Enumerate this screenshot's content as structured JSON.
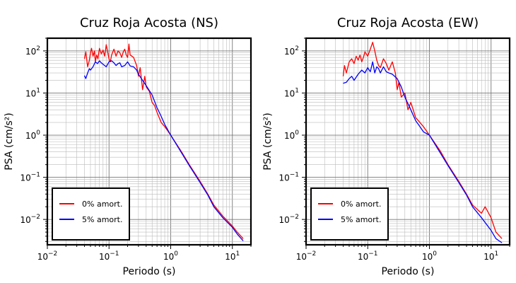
{
  "chart_data": [
    {
      "type": "line",
      "title": "Cruz Roja Acosta (NS)",
      "xlabel": "Periodo (s)",
      "ylabel": "PSA (cm/s²)",
      "xscale": "log",
      "yscale": "log",
      "xlim": [
        0.01,
        20
      ],
      "ylim": [
        0.0025,
        200
      ],
      "grid": true,
      "legend_position": "bottom-left",
      "x_ticks": [
        {
          "base": "10",
          "exp": "−2"
        },
        {
          "base": "10",
          "exp": "−1"
        },
        {
          "base": "10",
          "exp": "0"
        },
        {
          "base": "10",
          "exp": "1"
        }
      ],
      "y_ticks": [
        {
          "base": "10",
          "exp": "−2"
        },
        {
          "base": "10",
          "exp": "−1"
        },
        {
          "base": "10",
          "exp": "0"
        },
        {
          "base": "10",
          "exp": "1"
        },
        {
          "base": "10",
          "exp": "2"
        }
      ],
      "series": [
        {
          "name": "0% amort.",
          "color": "#ff0000",
          "x": [
            0.04,
            0.042,
            0.045,
            0.048,
            0.05,
            0.052,
            0.055,
            0.058,
            0.06,
            0.063,
            0.066,
            0.07,
            0.075,
            0.08,
            0.085,
            0.09,
            0.095,
            0.1,
            0.105,
            0.11,
            0.12,
            0.13,
            0.14,
            0.15,
            0.16,
            0.17,
            0.18,
            0.19,
            0.2,
            0.21,
            0.22,
            0.25,
            0.28,
            0.3,
            0.32,
            0.35,
            0.38,
            0.4,
            0.45,
            0.5,
            0.55,
            0.6,
            0.7,
            0.8,
            1,
            1.5,
            2,
            3,
            4,
            5,
            7,
            10,
            12,
            15
          ],
          "y": [
            65,
            95,
            42,
            60,
            90,
            115,
            75,
            100,
            55,
            80,
            65,
            115,
            85,
            105,
            75,
            140,
            95,
            65,
            55,
            80,
            110,
            75,
            100,
            90,
            70,
            95,
            110,
            80,
            70,
            145,
            80,
            70,
            45,
            25,
            40,
            12,
            25,
            14,
            11,
            6,
            5,
            3.5,
            2,
            1.6,
            1,
            0.4,
            0.2,
            0.08,
            0.04,
            0.022,
            0.012,
            0.007,
            0.005,
            0.0035
          ]
        },
        {
          "name": "5% amort.",
          "color": "#0000ff",
          "x": [
            0.04,
            0.042,
            0.045,
            0.048,
            0.05,
            0.055,
            0.06,
            0.065,
            0.07,
            0.075,
            0.08,
            0.09,
            0.1,
            0.11,
            0.12,
            0.13,
            0.14,
            0.15,
            0.16,
            0.18,
            0.2,
            0.22,
            0.25,
            0.28,
            0.3,
            0.35,
            0.4,
            0.5,
            0.6,
            0.7,
            0.8,
            1,
            1.5,
            2,
            3,
            4,
            5,
            7,
            10,
            12,
            15
          ],
          "y": [
            26,
            22,
            30,
            38,
            35,
            42,
            55,
            50,
            58,
            52,
            48,
            42,
            55,
            58,
            52,
            45,
            50,
            52,
            42,
            45,
            55,
            44,
            42,
            35,
            28,
            20,
            15,
            9,
            4.5,
            2.8,
            1.8,
            1,
            0.38,
            0.19,
            0.075,
            0.038,
            0.02,
            0.011,
            0.0065,
            0.0045,
            0.0031
          ]
        }
      ]
    },
    {
      "type": "line",
      "title": "Cruz Roja Acosta (EW)",
      "xlabel": "Periodo (s)",
      "ylabel": "PSA (cm/s²)",
      "xscale": "log",
      "yscale": "log",
      "xlim": [
        0.01,
        20
      ],
      "ylim": [
        0.0025,
        200
      ],
      "grid": true,
      "legend_position": "bottom-left",
      "x_ticks": [
        {
          "base": "10",
          "exp": "−2"
        },
        {
          "base": "10",
          "exp": "−1"
        },
        {
          "base": "10",
          "exp": "0"
        },
        {
          "base": "10",
          "exp": "1"
        }
      ],
      "y_ticks": [
        {
          "base": "10",
          "exp": "−2"
        },
        {
          "base": "10",
          "exp": "−1"
        },
        {
          "base": "10",
          "exp": "0"
        },
        {
          "base": "10",
          "exp": "1"
        },
        {
          "base": "10",
          "exp": "2"
        }
      ],
      "series": [
        {
          "name": "0% amort.",
          "color": "#ff0000",
          "x": [
            0.04,
            0.042,
            0.045,
            0.05,
            0.055,
            0.06,
            0.065,
            0.07,
            0.075,
            0.08,
            0.085,
            0.09,
            0.1,
            0.11,
            0.12,
            0.13,
            0.14,
            0.15,
            0.16,
            0.18,
            0.2,
            0.22,
            0.25,
            0.28,
            0.3,
            0.32,
            0.35,
            0.4,
            0.45,
            0.5,
            0.6,
            0.7,
            0.8,
            1,
            1.5,
            2,
            3,
            4,
            5,
            7,
            8,
            10,
            12,
            15
          ],
          "y": [
            25,
            45,
            30,
            55,
            65,
            50,
            75,
            60,
            80,
            55,
            70,
            95,
            75,
            110,
            160,
            100,
            60,
            45,
            40,
            65,
            50,
            35,
            55,
            30,
            12,
            18,
            8,
            10,
            4,
            6,
            2.6,
            2,
            1.6,
            1,
            0.42,
            0.2,
            0.08,
            0.04,
            0.022,
            0.014,
            0.02,
            0.011,
            0.005,
            0.0035
          ]
        },
        {
          "name": "5% amort.",
          "color": "#0000ff",
          "x": [
            0.04,
            0.045,
            0.05,
            0.055,
            0.06,
            0.07,
            0.08,
            0.09,
            0.1,
            0.11,
            0.12,
            0.13,
            0.14,
            0.15,
            0.16,
            0.18,
            0.2,
            0.22,
            0.25,
            0.3,
            0.35,
            0.4,
            0.5,
            0.6,
            0.7,
            0.8,
            1,
            1.5,
            2,
            3,
            4,
            5,
            7,
            10,
            12,
            15
          ],
          "y": [
            17,
            18,
            22,
            25,
            20,
            28,
            35,
            30,
            40,
            32,
            55,
            30,
            42,
            38,
            30,
            42,
            32,
            30,
            28,
            22,
            14,
            8,
            4,
            2.2,
            1.6,
            1.2,
            1,
            0.38,
            0.19,
            0.075,
            0.038,
            0.02,
            0.011,
            0.0055,
            0.0035,
            0.0028
          ]
        }
      ]
    }
  ]
}
